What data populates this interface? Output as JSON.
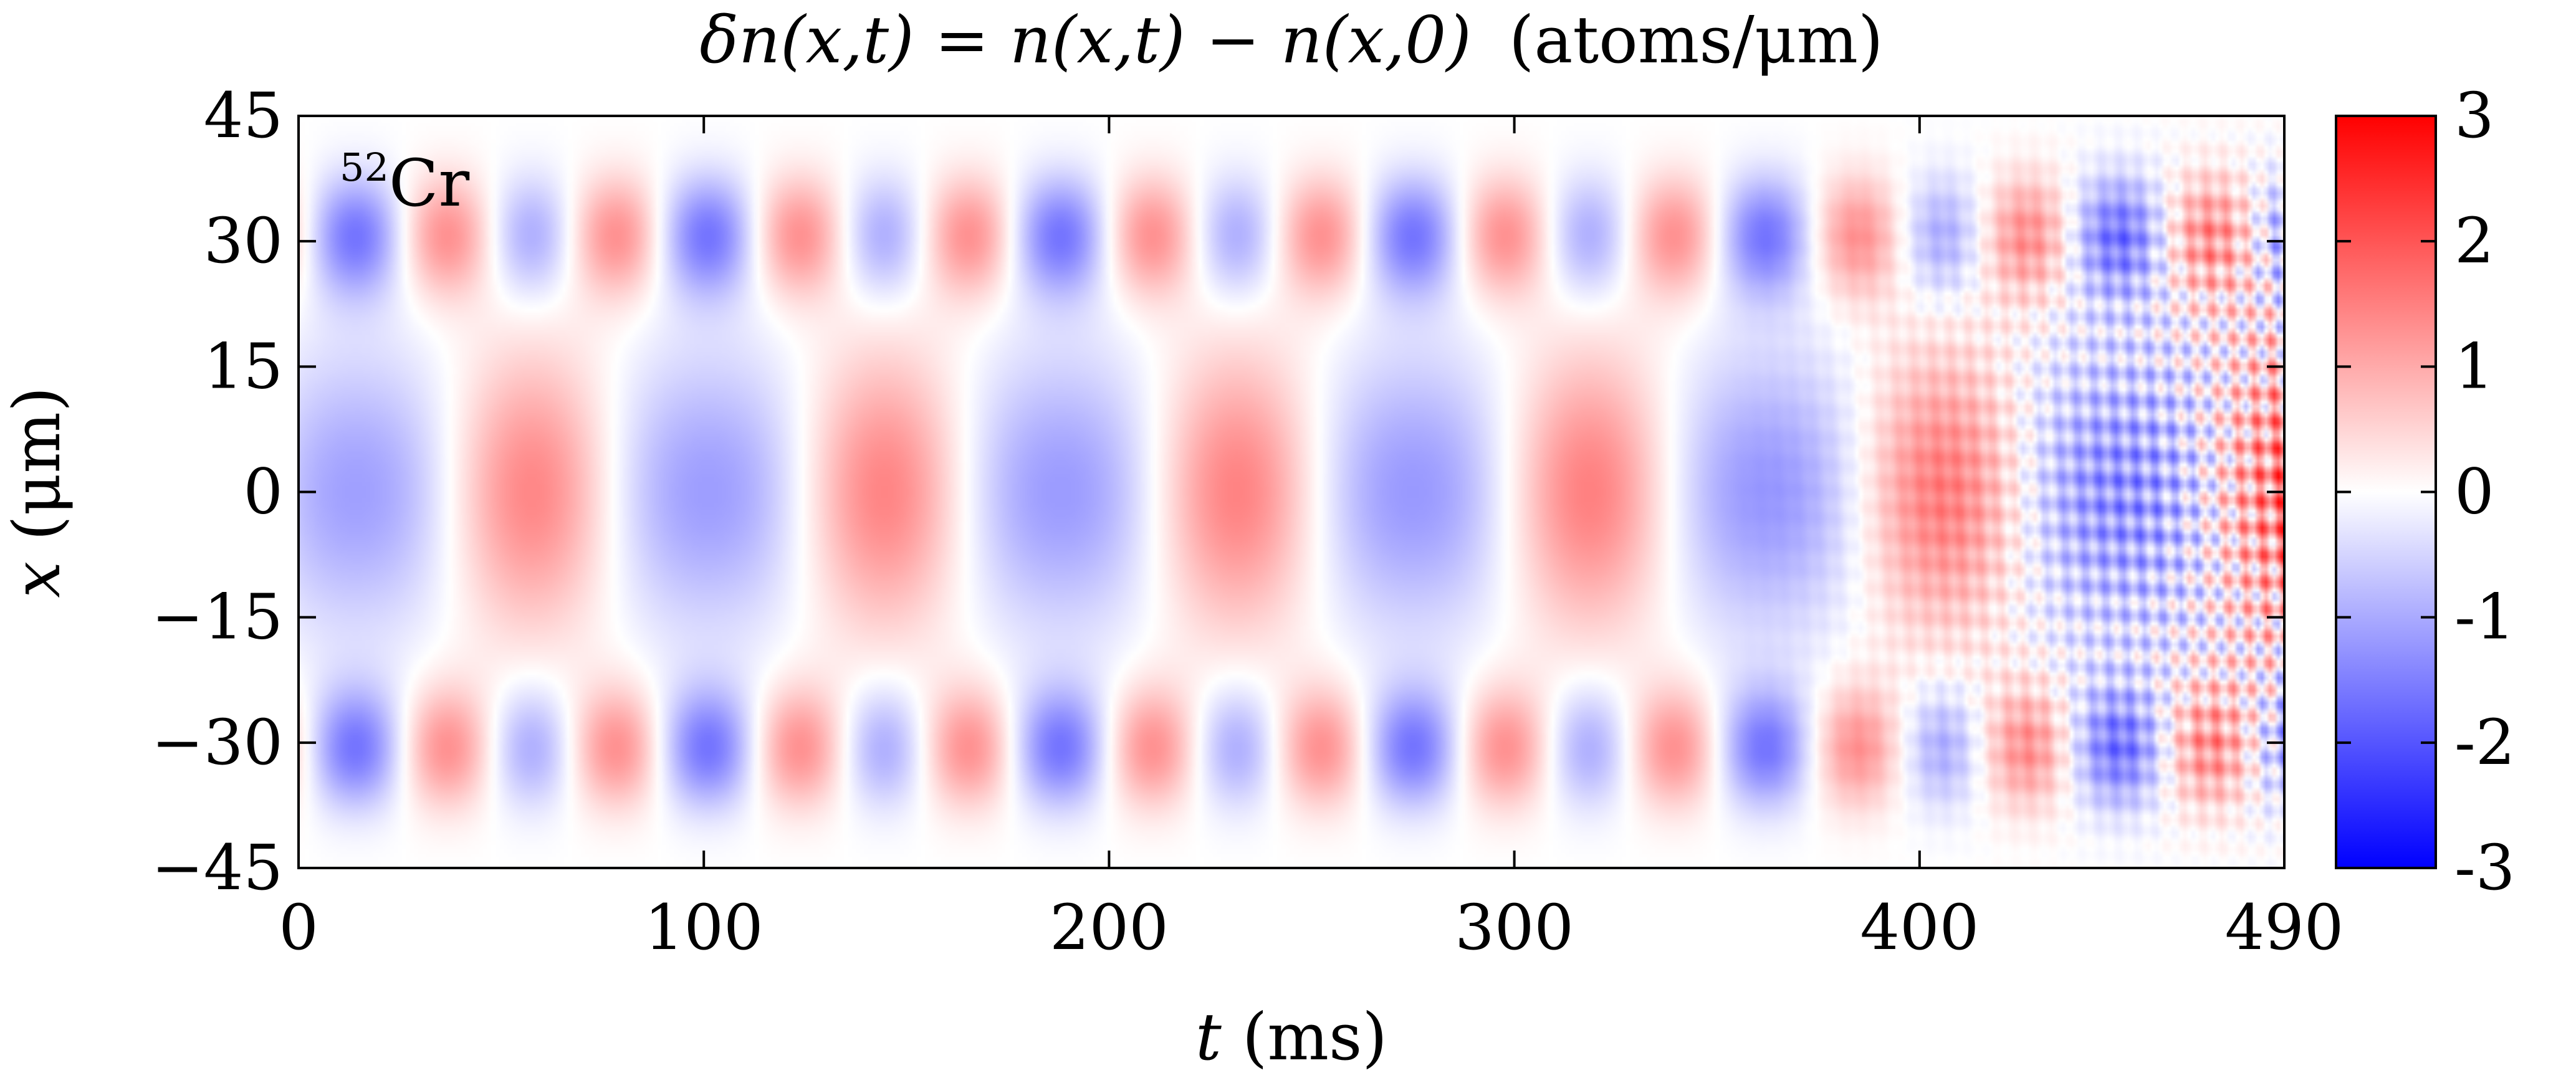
{
  "chart_data": {
    "type": "heatmap",
    "title_parts": {
      "lhs": "δn(x,t)",
      "eq": " = ",
      "rhs": "n(x,t) − n(x,0)",
      "unit": "(atoms/μm)"
    },
    "xlabel_var": "t",
    "xlabel_unit": " (ms)",
    "ylabel_var": "x",
    "ylabel_unit": " (μm)",
    "xlim": [
      0,
      490
    ],
    "ylim": [
      -45,
      45
    ],
    "x_ticks": [
      0,
      100,
      200,
      300,
      400,
      490
    ],
    "x_tick_labels": [
      "0",
      "100",
      "200",
      "300",
      "400",
      "490"
    ],
    "y_ticks": [
      45,
      30,
      15,
      0,
      -15,
      -30,
      -45
    ],
    "y_tick_labels": [
      "45",
      "30",
      "15",
      "0",
      "−15",
      "−30",
      "−45"
    ],
    "colorbar": {
      "range": [
        -3,
        3
      ],
      "ticks": [
        3,
        2,
        1,
        0,
        -1,
        -2,
        -3
      ],
      "tick_labels": [
        "3",
        "2",
        "1",
        "0",
        "-1",
        "-2",
        "-3"
      ],
      "colors": [
        "#0000ff",
        "#ffffff",
        "#ff0000"
      ]
    },
    "annotation": {
      "superscript": "52",
      "text": "Cr"
    },
    "grid": false
  }
}
